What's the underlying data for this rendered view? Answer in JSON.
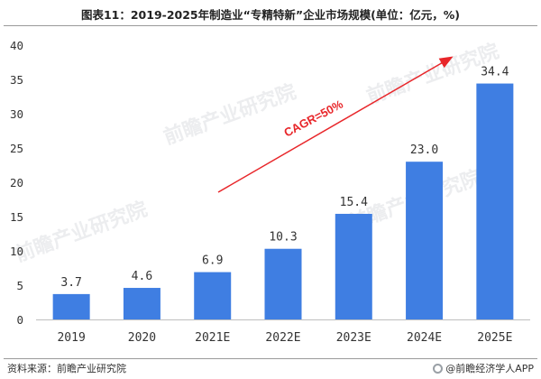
{
  "title": "图表11：2019-2025年制造业“专精特新”企业市场规模(单位：亿元，%)",
  "chart_data": {
    "type": "bar",
    "categories": [
      "2019",
      "2020",
      "2021E",
      "2022E",
      "2023E",
      "2024E",
      "2025E"
    ],
    "values": [
      3.7,
      4.6,
      6.9,
      10.3,
      15.4,
      23.0,
      34.4
    ],
    "value_labels": [
      "3.7",
      "4.6",
      "6.9",
      "10.3",
      "15.4",
      "23.0",
      "34.4"
    ],
    "ylim": [
      0,
      40
    ],
    "yticks": [
      0,
      5,
      10,
      15,
      20,
      25,
      30,
      35,
      40
    ],
    "grid": false,
    "legend": "none",
    "bar_color": "#3F7EE2",
    "annotation": {
      "text": "CAGR=50%",
      "color": "#E8262A"
    }
  },
  "watermark": {
    "text": "前瞻产业研究院"
  },
  "footer": {
    "source": "资料来源：前瞻产业研究院",
    "brand": "@前瞻经济学人APP"
  }
}
